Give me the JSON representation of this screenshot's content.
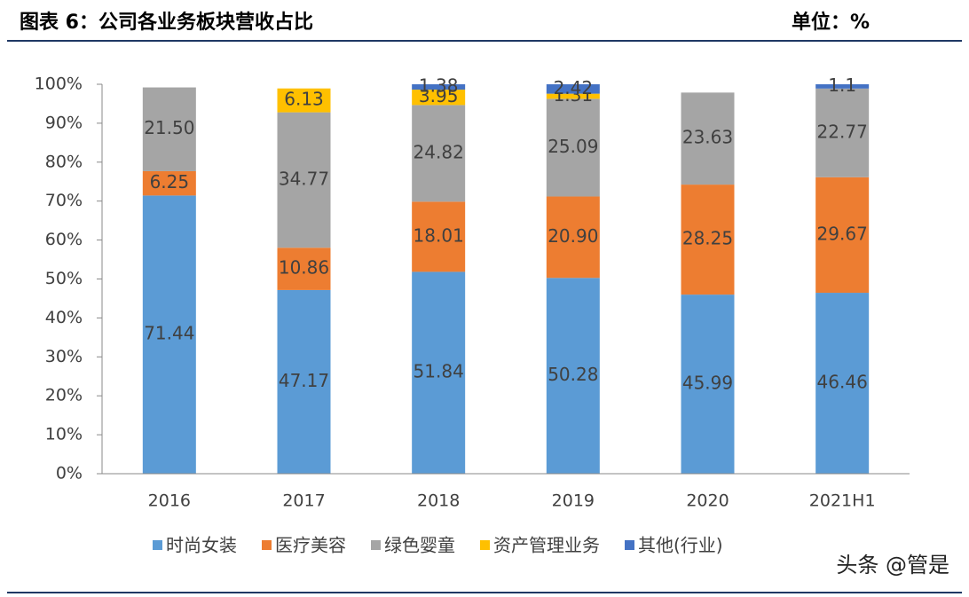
{
  "chart_data": {
    "type": "bar",
    "stacked": true,
    "title": "图表 6：公司各业务板块营收占比",
    "unit": "单位：%",
    "watermark": "头条 @管是",
    "categories": [
      "2016",
      "2017",
      "2018",
      "2019",
      "2020",
      "2021H1"
    ],
    "ylim": [
      0,
      100
    ],
    "yticks": [
      {
        "value": 0,
        "label": "0%"
      },
      {
        "value": 10,
        "label": "10%"
      },
      {
        "value": 20,
        "label": "20%"
      },
      {
        "value": 30,
        "label": "30%"
      },
      {
        "value": 40,
        "label": "40%"
      },
      {
        "value": 50,
        "label": "50%"
      },
      {
        "value": 60,
        "label": "60%"
      },
      {
        "value": 70,
        "label": "70%"
      },
      {
        "value": 80,
        "label": "80%"
      },
      {
        "value": 90,
        "label": "90%"
      },
      {
        "value": 100,
        "label": "100%"
      }
    ],
    "grid": false,
    "legend": "bottom",
    "series": [
      {
        "name": "时尚女装",
        "color": "#5b9bd5",
        "values": [
          71.44,
          47.17,
          51.84,
          50.28,
          45.99,
          46.46
        ],
        "value_labels": [
          "71.44",
          "47.17",
          "51.84",
          "50.28",
          "45.99",
          "46.46"
        ]
      },
      {
        "name": "医疗美容",
        "color": "#ed7d31",
        "values": [
          6.25,
          10.86,
          18.01,
          20.9,
          28.25,
          29.67
        ],
        "value_labels": [
          "6.25",
          "10.86",
          "18.01",
          "20.90",
          "28.25",
          "29.67"
        ]
      },
      {
        "name": "绿色婴童",
        "color": "#a5a5a5",
        "values": [
          21.5,
          34.77,
          24.82,
          25.09,
          23.63,
          22.77
        ],
        "value_labels": [
          "21.50",
          "34.77",
          "24.82",
          "25.09",
          "23.63",
          "22.77"
        ]
      },
      {
        "name": "资产管理业务",
        "color": "#ffc000",
        "values": [
          null,
          6.13,
          3.95,
          1.31,
          null,
          null
        ],
        "value_labels": [
          null,
          "6.13",
          "3.95",
          "1.31",
          null,
          null
        ]
      },
      {
        "name": "其他(行业)",
        "color": "#4472c4",
        "values": [
          null,
          null,
          1.38,
          2.42,
          null,
          1.1
        ],
        "value_labels": [
          null,
          null,
          "1.38",
          "2.42",
          null,
          "1.1"
        ]
      }
    ]
  }
}
